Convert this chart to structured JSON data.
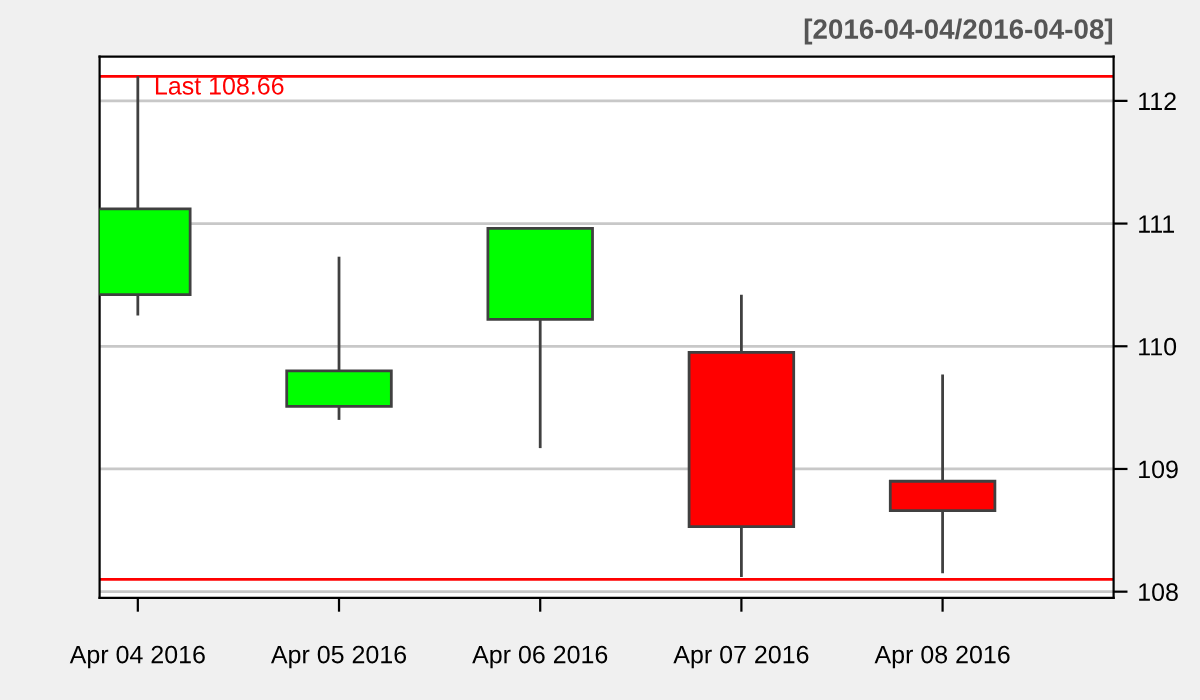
{
  "chart_data": {
    "type": "candlestick",
    "subtitle": "[2016-04-04/2016-04-08]",
    "categories": [
      "Apr 04 2016",
      "Apr 05 2016",
      "Apr 06 2016",
      "Apr 07 2016",
      "Apr 08 2016"
    ],
    "ohlc": [
      [
        110.42,
        112.2,
        110.25,
        111.12
      ],
      [
        109.51,
        110.73,
        109.4,
        109.8
      ],
      [
        110.22,
        110.97,
        109.17,
        110.96
      ],
      [
        109.95,
        110.42,
        108.12,
        108.53
      ],
      [
        108.9,
        109.77,
        108.15,
        108.66
      ]
    ],
    "colors": [
      "#00ff00",
      "#00ff00",
      "#00ff00",
      "#ff0000",
      "#ff0000"
    ],
    "ylim": [
      107.95,
      112.36
    ],
    "yticks": [
      108,
      109,
      110,
      111,
      112
    ],
    "grid": "y",
    "ref_lines": [
      {
        "axis": "y",
        "value": 112.2,
        "label": "Last 108.66",
        "color": "#ff0000"
      },
      {
        "axis": "y",
        "value": 108.1,
        "color": "#ff0000"
      }
    ]
  }
}
